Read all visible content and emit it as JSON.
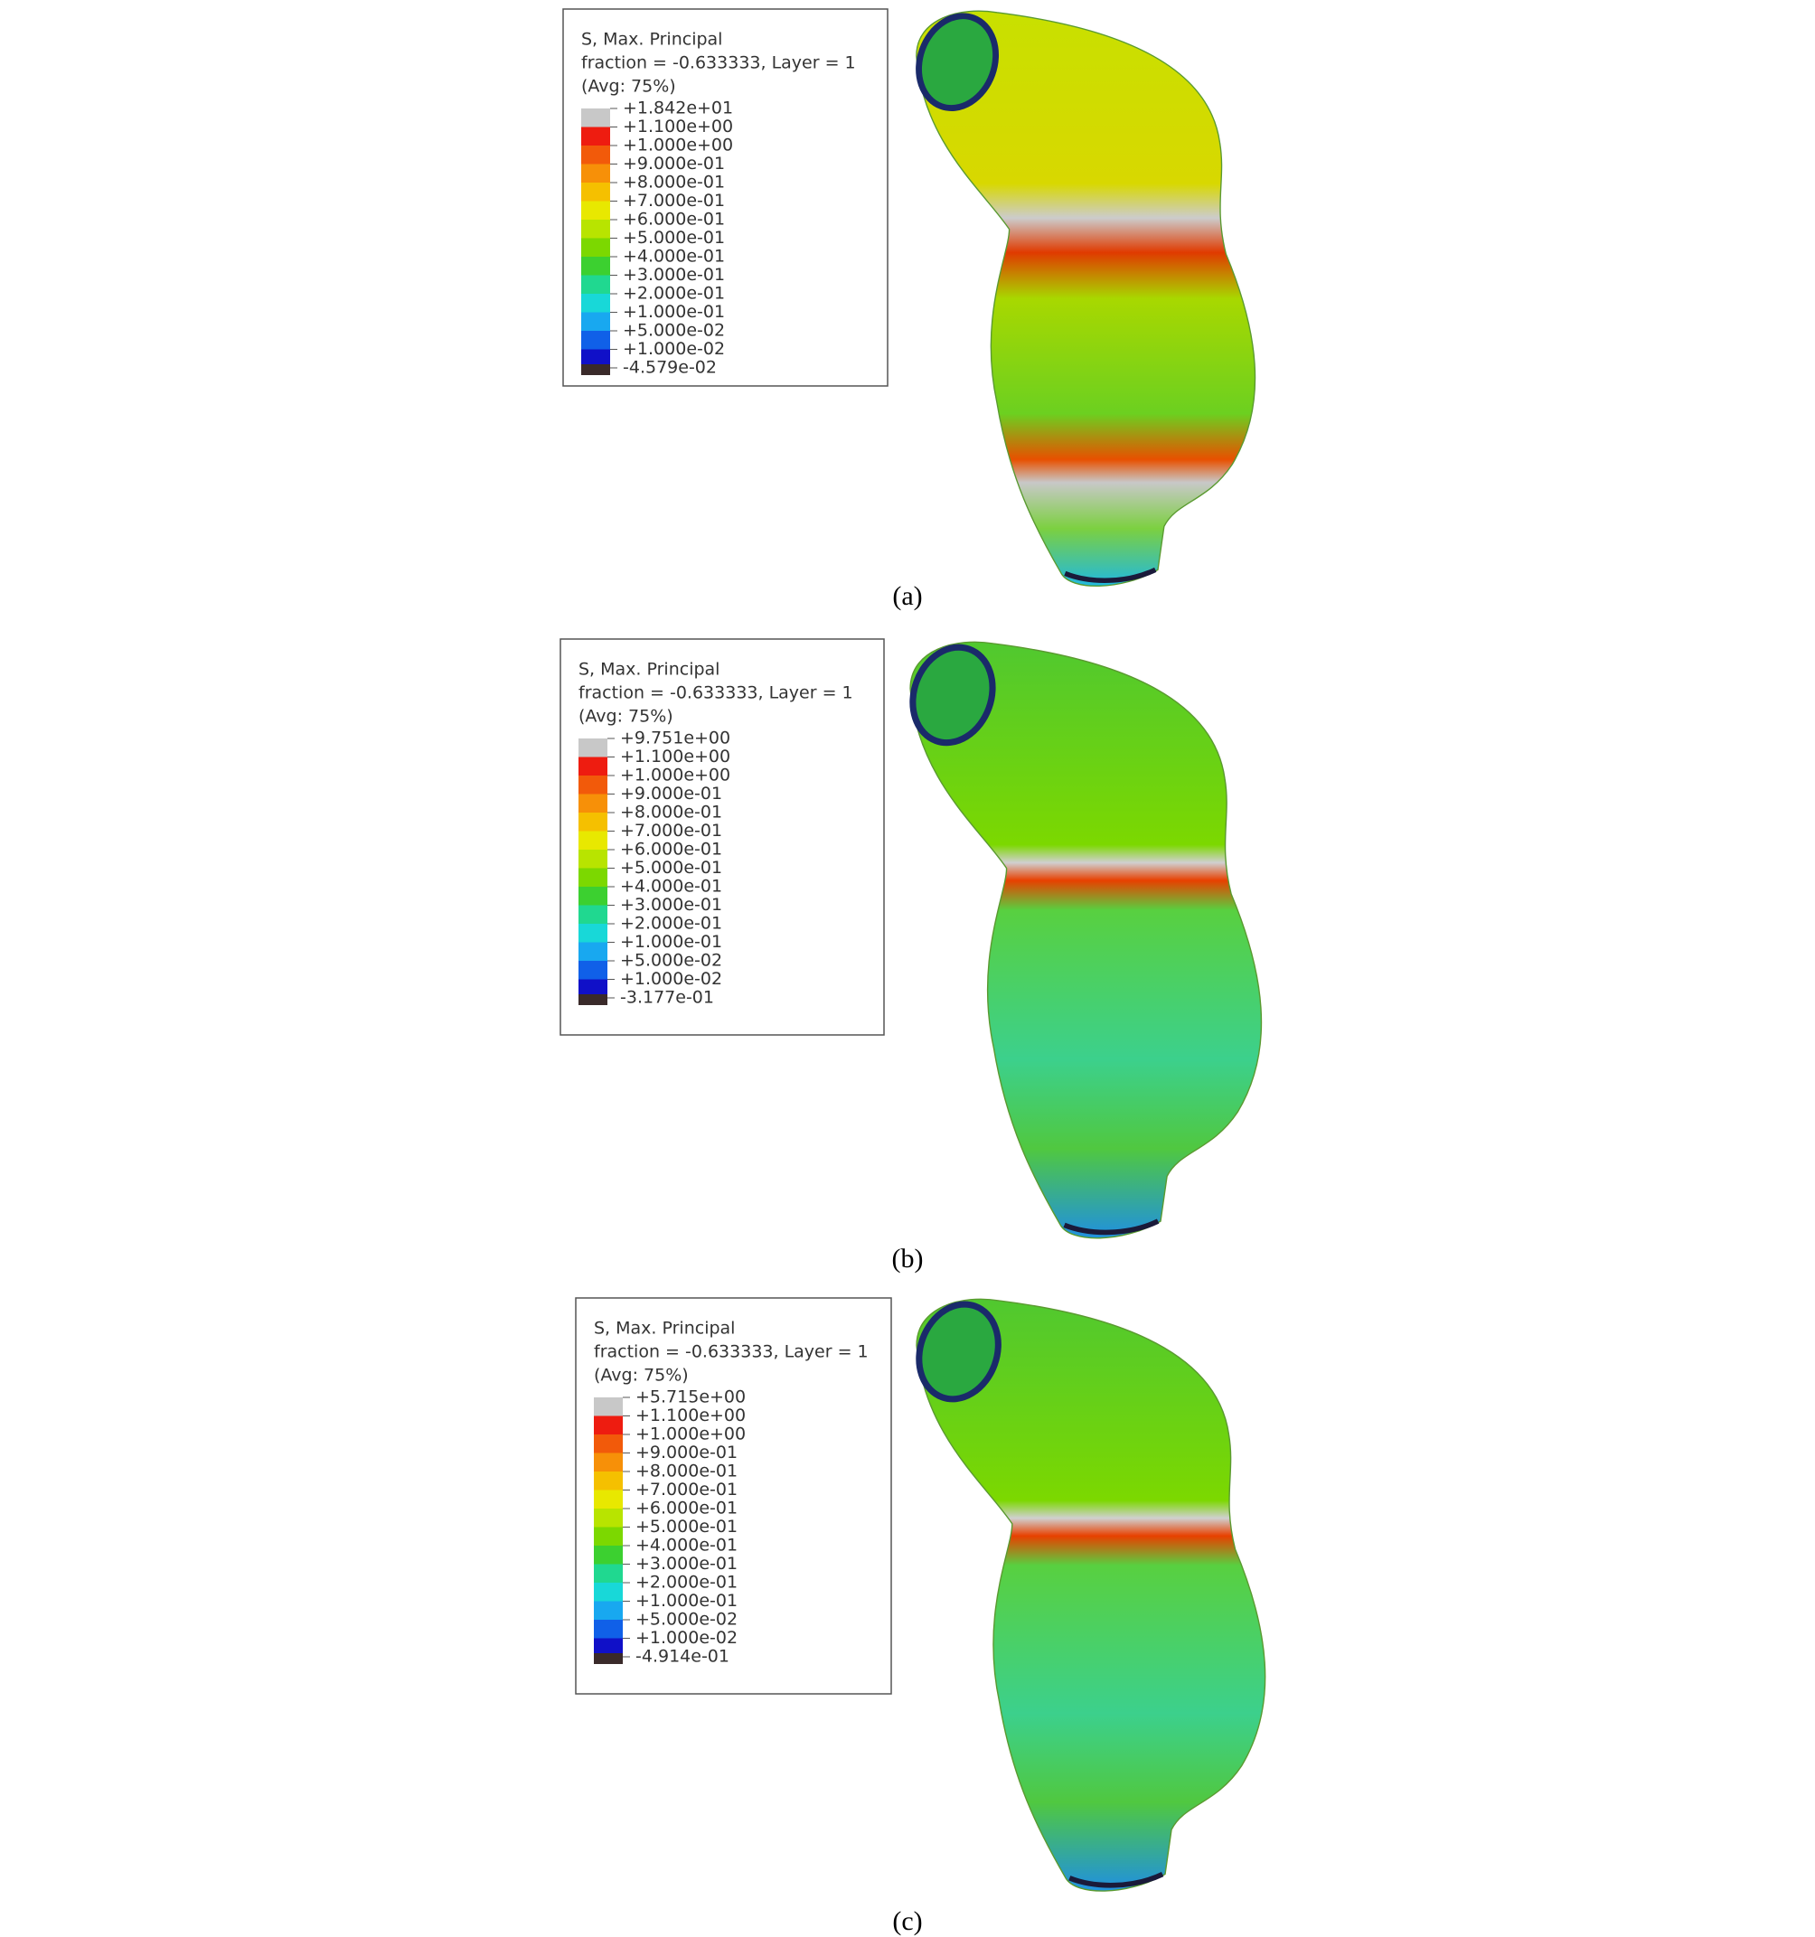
{
  "panels": [
    {
      "legend": {
        "title": [
          "S, Max. Principal",
          "fraction = -0.633333, Layer = 1",
          "(Avg: 75%)"
        ],
        "labels": [
          "+1.842e+01",
          "+1.100e+00",
          "+1.000e+00",
          "+9.000e-01",
          "+8.000e-01",
          "+7.000e-01",
          "+6.000e-01",
          "+5.000e-01",
          "+4.000e-01",
          "+3.000e-01",
          "+2.000e-01",
          "+1.000e-01",
          "+5.000e-02",
          "+1.000e-02",
          "-4.579e-02"
        ]
      },
      "caption": "(a)"
    },
    {
      "legend": {
        "title": [
          "S, Max. Principal",
          "fraction = -0.633333, Layer = 1",
          "(Avg: 75%)"
        ],
        "labels": [
          "+9.751e+00",
          "+1.100e+00",
          "+1.000e+00",
          "+9.000e-01",
          "+8.000e-01",
          "+7.000e-01",
          "+6.000e-01",
          "+5.000e-01",
          "+4.000e-01",
          "+3.000e-01",
          "+2.000e-01",
          "+1.000e-01",
          "+5.000e-02",
          "+1.000e-02",
          "-3.177e-01"
        ]
      },
      "caption": "(b)"
    },
    {
      "legend": {
        "title": [
          "S, Max. Principal",
          "fraction = -0.633333, Layer = 1",
          "(Avg: 75%)"
        ],
        "labels": [
          "+5.715e+00",
          "+1.100e+00",
          "+1.000e+00",
          "+9.000e-01",
          "+8.000e-01",
          "+7.000e-01",
          "+6.000e-01",
          "+5.000e-01",
          "+4.000e-01",
          "+3.000e-01",
          "+2.000e-01",
          "+1.000e-01",
          "+5.000e-02",
          "+1.000e-02",
          "-4.914e-01"
        ]
      },
      "caption": "(c)"
    }
  ]
}
